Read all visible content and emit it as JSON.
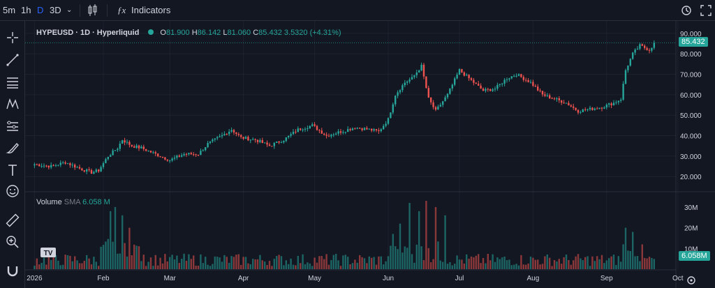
{
  "toolbar": {
    "intervals": [
      "5m",
      "1h",
      "D",
      "3D"
    ],
    "indicators_label": "Indicators"
  },
  "legend": {
    "symbol": "HYPEUSD · 1D · Hyperliquid",
    "o_key": "O",
    "o_val": "81.900",
    "h_key": "H",
    "h_val": "86.142",
    "l_key": "L",
    "l_val": "81.060",
    "c_key": "C",
    "c_val": "85.432",
    "change": "3.5320 (+4.31%)",
    "volume_label": "Volume",
    "sma_label": "SMA",
    "sma_value": "6.058 M"
  },
  "colors": {
    "background": "#131722",
    "up": "#26a69a",
    "down": "#ef5350",
    "grid": "#1e222d"
  },
  "logo": "TV",
  "chart_data": [
    {
      "type": "candlestick",
      "title": "HYPEUSD · 1D · Hyperliquid",
      "x_labels": [
        "2026",
        "Feb",
        "Mar",
        "Apr",
        "May",
        "Jun",
        "Jul",
        "Aug",
        "Sep",
        "Oct"
      ],
      "y_ticks": [
        "90.000",
        "80.000",
        "70.000",
        "60.000",
        "50.000",
        "40.000",
        "30.000",
        "20.000"
      ],
      "ylim": [
        17,
        92
      ],
      "last_price": "85.432",
      "close_path": [
        [
          1,
          26
        ],
        [
          8,
          25
        ],
        [
          14,
          27
        ],
        [
          20,
          24
        ],
        [
          25,
          22
        ],
        [
          28,
          23
        ],
        [
          32,
          30
        ],
        [
          36,
          34
        ],
        [
          38,
          38
        ],
        [
          42,
          35
        ],
        [
          46,
          34
        ],
        [
          52,
          31
        ],
        [
          58,
          28
        ],
        [
          64,
          31
        ],
        [
          70,
          31
        ],
        [
          74,
          36
        ],
        [
          80,
          40
        ],
        [
          84,
          43
        ],
        [
          88,
          39
        ],
        [
          94,
          38
        ],
        [
          100,
          35
        ],
        [
          106,
          38
        ],
        [
          112,
          43
        ],
        [
          118,
          45
        ],
        [
          124,
          40
        ],
        [
          130,
          42
        ],
        [
          136,
          44
        ],
        [
          142,
          43
        ],
        [
          146,
          42
        ],
        [
          150,
          48
        ],
        [
          153,
          60
        ],
        [
          157,
          66
        ],
        [
          160,
          68
        ],
        [
          164,
          74
        ],
        [
          167,
          58
        ],
        [
          170,
          52
        ],
        [
          175,
          60
        ],
        [
          180,
          72
        ],
        [
          186,
          66
        ],
        [
          190,
          62
        ],
        [
          195,
          63
        ],
        [
          200,
          68
        ],
        [
          204,
          70
        ],
        [
          210,
          66
        ],
        [
          215,
          60
        ],
        [
          220,
          58
        ],
        [
          225,
          56
        ],
        [
          230,
          52
        ],
        [
          235,
          53
        ],
        [
          240,
          54
        ],
        [
          245,
          56
        ],
        [
          248,
          58
        ],
        [
          250,
          72
        ],
        [
          253,
          80
        ],
        [
          256,
          84
        ],
        [
          260,
          82
        ],
        [
          262,
          85
        ]
      ]
    },
    {
      "type": "bar",
      "title": "Volume",
      "y_ticks": [
        "30M",
        "20M",
        "10M"
      ],
      "ylim": [
        0,
        33
      ],
      "sma_last": "6.058M",
      "spikes": [
        [
          33,
          28
        ],
        [
          35,
          30
        ],
        [
          38,
          26
        ],
        [
          41,
          20
        ],
        [
          152,
          17
        ],
        [
          155,
          22
        ],
        [
          159,
          32
        ],
        [
          163,
          28
        ],
        [
          166,
          33
        ],
        [
          170,
          30
        ],
        [
          174,
          26
        ],
        [
          250,
          20
        ],
        [
          253,
          18
        ]
      ]
    }
  ]
}
